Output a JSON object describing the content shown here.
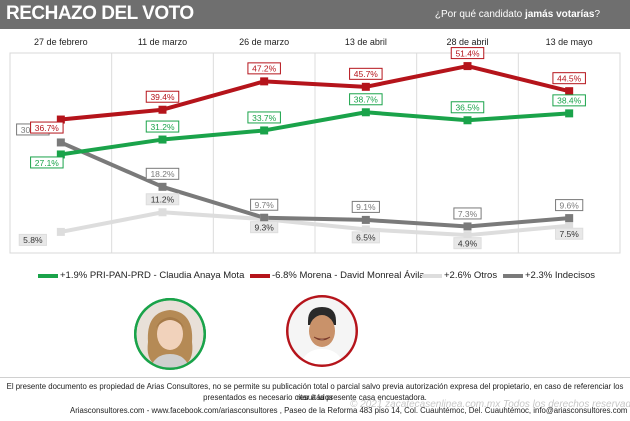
{
  "header": {
    "title": "RECHAZO DEL VOTO",
    "question_prefix": "¿Por qué candidato ",
    "question_bold": "jamás votarías",
    "question_suffix": "?"
  },
  "colors": {
    "header_bg": "#6f6f6f",
    "green": "#1aa34a",
    "red": "#b5141b",
    "light_gray": "#dddddd",
    "dark_gray": "#7a7a7a"
  },
  "chart_data": {
    "type": "line",
    "categories": [
      "27 de febrero",
      "11 de marzo",
      "26 de marzo",
      "13 de abril",
      "28 de abril",
      "13 de mayo"
    ],
    "ylim": [
      0,
      55
    ],
    "grid": true,
    "legend_position": "bottom",
    "series": [
      {
        "name": "+1.9% PRI-PAN-PRD - Claudia Anaya Mota",
        "color": "#1aa34a",
        "values": [
          27.1,
          31.2,
          33.7,
          38.7,
          36.5,
          38.4
        ],
        "labels": [
          "27.1%",
          "31.2%",
          "33.7%",
          "38.7%",
          "36.5%",
          "38.4%"
        ]
      },
      {
        "name": "-6.8% Morena - David Monreal Ávila",
        "color": "#b5141b",
        "values": [
          36.7,
          39.4,
          47.2,
          45.7,
          51.4,
          44.5
        ],
        "labels": [
          "36.7%",
          "39.4%",
          "47.2%",
          "45.7%",
          "51.4%",
          "44.5%"
        ]
      },
      {
        "name": "+2.6% Otros",
        "color": "#dddddd",
        "values": [
          5.8,
          11.2,
          9.3,
          6.5,
          4.9,
          7.5
        ],
        "labels": [
          "5.8%",
          "11.2%",
          "9.3%",
          "6.5%",
          "4.9%",
          "7.5%"
        ]
      },
      {
        "name": "+2.3% Indecisos",
        "color": "#7a7a7a",
        "values": [
          30.4,
          18.2,
          9.7,
          9.1,
          7.3,
          9.6
        ],
        "labels": [
          "30.4%",
          "18.2%",
          "9.7%",
          "9.1%",
          "7.3%",
          "9.6%"
        ]
      }
    ]
  },
  "photos": {
    "left_name": "Claudia Anaya Mota",
    "right_name": "David Monreal Ávila"
  },
  "footer": {
    "line1": "El presente documento es propiedad de Arias Consultores, no se permite su publicación total o parcial salvo previa autorización expresa del propietario, en caso de referenciar los resultados",
    "line2": "presentados es necesario citar a la presente casa encuestadora.",
    "line3": "Ariasconsultores.com -   www.facebook.com/ariasconsultores , Paseo de la Reforma 483 piso 14, Col. Cuauhtémoc, Del. Cuauhtémoc, info@ariasconsultores.com",
    "watermark": "© 2021 zacatecasenlinea.com.mx Todos los derechos reservados."
  }
}
